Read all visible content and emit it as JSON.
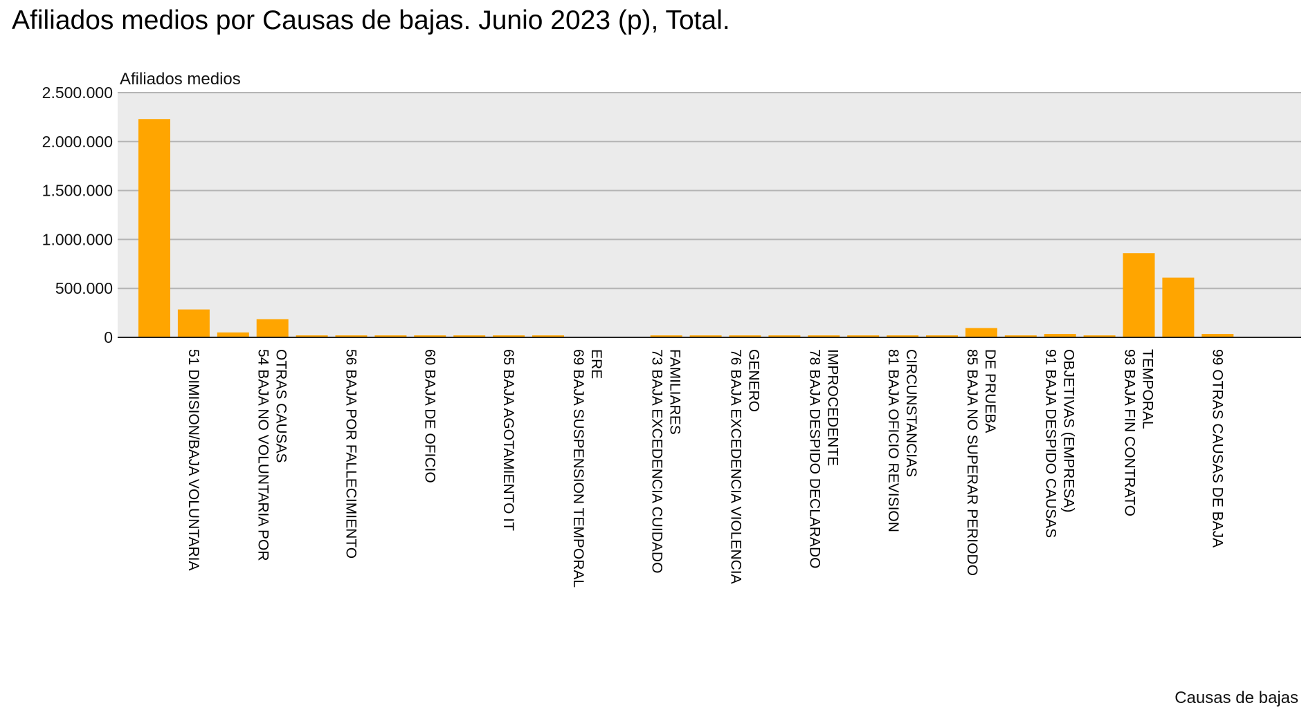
{
  "chart_data": {
    "type": "bar",
    "title": "Afiliados medios por Causas de bajas. Junio 2023 (p), Total.",
    "ylabel": "Afiliados medios",
    "xlabel": "Causas de bajas",
    "ylim": [
      0,
      2500000
    ],
    "yticks": [
      0,
      500000,
      1000000,
      1500000,
      2000000,
      2500000
    ],
    "ytick_labels": [
      "0",
      "500.000",
      "1.000.000",
      "1.500.000",
      "2.000.000",
      "2.500.000"
    ],
    "grid": true,
    "bar_color": "#FFA500",
    "plot_background": "#EBEBEB",
    "categories": [
      "",
      "51 DIMISION/BAJA VOLUNTARIA",
      "",
      "54 BAJA NO VOLUNTARIA POR OTRAS CAUSAS",
      "",
      "56 BAJA POR FALLECIMIENTO",
      "",
      "60 BAJA DE OFICIO",
      "",
      "65 BAJA AGOTAMIENTO IT",
      "",
      "69 BAJA SUSPENSION TEMPORAL ERE",
      "",
      "73 BAJA EXCEDENCIA CUIDADO FAMILIARES",
      "",
      "76 BAJA EXCEDENCIA VIOLENCIA GENERO",
      "",
      "78 BAJA DESPIDO DECLARADO IMPROCEDENTE",
      "",
      "81 BAJA OFICIO REVISION CIRCUNSTANCIAS",
      "",
      "85 BAJA NO SUPERAR PERIODO DE PRUEBA",
      "",
      "91 BAJA DESPIDO CAUSAS OBJETIVAS (EMPRESA)",
      "",
      "93 BAJA FIN CONTRATO TEMPORAL",
      "",
      "99 OTRAS CAUSAS DE BAJA"
    ],
    "values": [
      2230000,
      285000,
      50000,
      185000,
      20000,
      20000,
      20000,
      20000,
      20000,
      20000,
      20000,
      0,
      0,
      20000,
      20000,
      20000,
      20000,
      20000,
      20000,
      20000,
      20000,
      95000,
      20000,
      35000,
      20000,
      860000,
      610000,
      35000
    ]
  }
}
